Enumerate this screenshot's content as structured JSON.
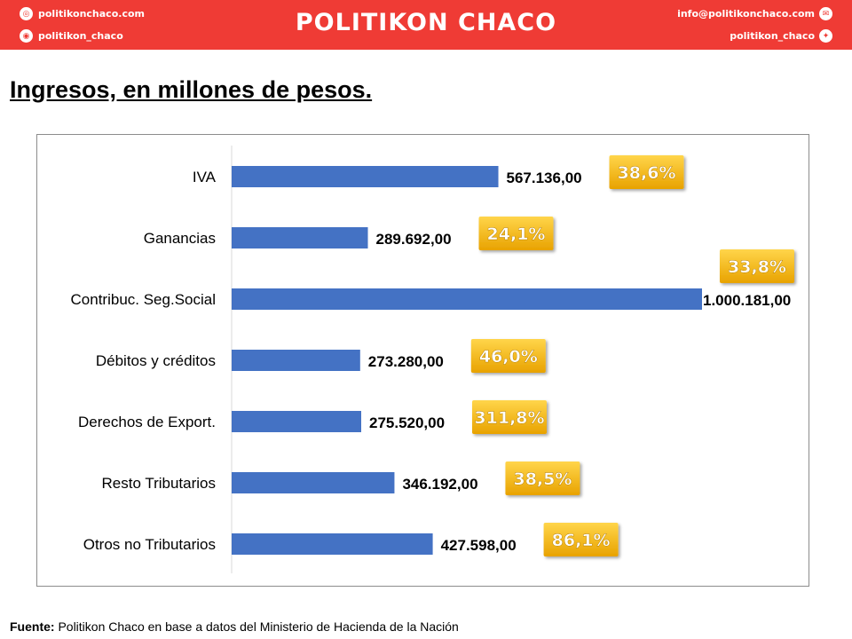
{
  "header": {
    "brand": "POLITIKON CHACO",
    "website": "politikonchaco.com",
    "instagram": "politikon_chaco",
    "email": "info@politikonchaco.com",
    "twitter": "politikon_chaco",
    "icons": [
      "globe-icon",
      "instagram-icon",
      "mail-icon",
      "twitter-icon"
    ]
  },
  "title": "Ingresos, en millones de pesos.",
  "source": {
    "label": "Fuente:",
    "text": " Politikon Chaco en base a datos del Ministerio de Hacienda de la Nación"
  },
  "colors": {
    "header_bg": "#ef3b35",
    "bar": "#4472c4",
    "badge_top": "#ffd54a",
    "badge_bottom": "#e8a200"
  },
  "chart_data": {
    "type": "bar",
    "orientation": "horizontal",
    "categories": [
      "IVA",
      "Ganancias",
      "Contribuc. Seg.Social",
      "Débitos y créditos",
      "Derechos de Export.",
      "Resto Tributarios",
      "Otros no Tributarios"
    ],
    "values": [
      567136,
      289692,
      1000181,
      273280,
      275520,
      346192,
      427598
    ],
    "value_labels": [
      "567.136,00",
      "289.692,00",
      "1.000.181,00",
      "273.280,00",
      "275.520,00",
      "346.192,00",
      "427.598,00"
    ],
    "percent_labels": [
      "38,6%",
      "24,1%",
      "33,8%",
      "46,0%",
      "311,8%",
      "38,5%",
      "86,1%"
    ],
    "xlim": [
      0,
      1000181
    ],
    "grid": false,
    "legend": "none"
  }
}
